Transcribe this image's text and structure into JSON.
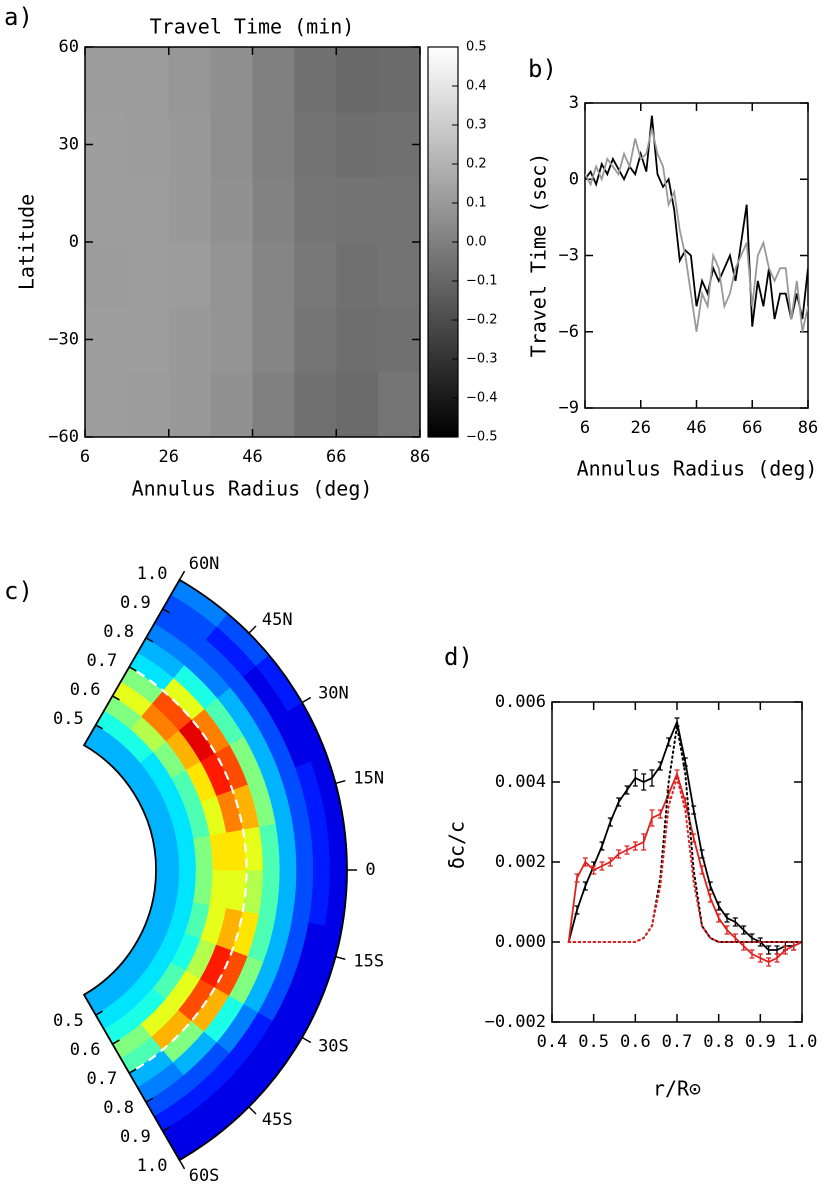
{
  "chart_data": [
    {
      "type": "heatmap",
      "label": "a)",
      "title": "Travel Time (min)",
      "xlabel": "Annulus Radius (deg)",
      "ylabel": "Latitude",
      "x_edges": [
        6,
        16,
        26,
        36,
        46,
        56,
        66,
        76,
        86
      ],
      "y_edges": [
        -60,
        -40,
        -20,
        0,
        20,
        40,
        60
      ],
      "values": [
        [
          0.12,
          0.11,
          0.1,
          0.07,
          0.0,
          -0.06,
          -0.08,
          -0.04
        ],
        [
          0.12,
          0.12,
          0.1,
          0.08,
          0.02,
          -0.04,
          -0.07,
          -0.06
        ],
        [
          0.11,
          0.12,
          0.11,
          0.08,
          0.02,
          -0.03,
          -0.06,
          -0.05
        ],
        [
          0.12,
          0.12,
          0.1,
          0.07,
          0.01,
          -0.04,
          -0.05,
          -0.05
        ],
        [
          0.12,
          0.11,
          0.1,
          0.06,
          0.0,
          -0.05,
          -0.07,
          -0.06
        ],
        [
          0.11,
          0.11,
          0.09,
          0.06,
          0.0,
          -0.06,
          -0.09,
          -0.08
        ]
      ],
      "xlim": [
        6,
        86
      ],
      "xticks": [
        6,
        26,
        46,
        66,
        86
      ],
      "ylim": [
        -60,
        60
      ],
      "yticks": [
        {
          "value": -60,
          "label": "−60"
        },
        {
          "value": -30,
          "label": "−30"
        },
        0,
        30,
        60
      ],
      "colormap": "gray",
      "colorbar": {
        "lim": [
          -0.5,
          0.5
        ],
        "ticks": [
          0.5,
          0.4,
          0.3,
          0.2,
          0.1,
          {
            "value": 0,
            "label": "0.0"
          },
          {
            "value": -0.1,
            "label": "−0.1"
          },
          {
            "value": -0.2,
            "label": "−0.2"
          },
          {
            "value": -0.3,
            "label": "−0.3"
          },
          {
            "value": -0.4,
            "label": "−0.4"
          },
          {
            "value": -0.5,
            "label": "−0.5"
          }
        ]
      }
    },
    {
      "type": "line",
      "label": "b)",
      "xlabel": "Annulus Radius (deg)",
      "ylabel": "Travel Time (sec)",
      "x": [
        6,
        8,
        10,
        12,
        14,
        16,
        18,
        20,
        22,
        24,
        26,
        28,
        30,
        32,
        34,
        36,
        38,
        40,
        42,
        44,
        46,
        48,
        50,
        52,
        54,
        56,
        58,
        60,
        62,
        64,
        66,
        68,
        70,
        72,
        74,
        76,
        78,
        80,
        82,
        84,
        86
      ],
      "series": [
        {
          "color": "#000000",
          "values": [
            0,
            0.3,
            -0.2,
            0.6,
            0.2,
            0.8,
            0.4,
            0,
            0.5,
            0.2,
            1,
            0.3,
            2.5,
            0.2,
            -0.3,
            0,
            -1.2,
            -3.2,
            -2.8,
            -3,
            -5,
            -4,
            -4.5,
            -3.5,
            -4,
            -3.5,
            -3,
            -4,
            -2.5,
            -1,
            -5.8,
            -4,
            -5,
            -3.5,
            -5.5,
            -4.5,
            -4.5,
            -5.5,
            -4.5,
            -5.5,
            -3.5
          ]
        },
        {
          "color": "#999999",
          "values": [
            0.2,
            -0.2,
            0.5,
            0,
            0.8,
            0.5,
            0.2,
            1,
            0.5,
            1.6,
            0.8,
            1,
            2,
            1,
            0.5,
            -1,
            -0.5,
            -2,
            -3,
            -4.5,
            -6,
            -4.5,
            -5,
            -3,
            -3.5,
            -5,
            -4.5,
            -3.5,
            -3,
            -2.5,
            -5,
            -3,
            -2.5,
            -3.5,
            -4,
            -3.5,
            -3.5,
            -5.5,
            -4,
            -6,
            -5
          ]
        }
      ],
      "xlim": [
        6,
        86
      ],
      "xticks": [
        6,
        26,
        46,
        66,
        86
      ],
      "ylim": [
        -9,
        3
      ],
      "yticks": [
        {
          "value": -9,
          "label": "−9"
        },
        {
          "value": -6,
          "label": "−6"
        },
        {
          "value": -3,
          "label": "−3"
        },
        0,
        3
      ]
    },
    {
      "type": "polar_heatmap",
      "label": "c)",
      "colormap": "jet",
      "lat_edges": [
        -60,
        -50,
        -40,
        -30,
        -20,
        -10,
        0,
        10,
        20,
        30,
        40,
        50,
        60
      ],
      "r_edges": [
        0.43,
        0.5,
        0.55,
        0.6,
        0.65,
        0.7,
        0.75,
        0.8,
        0.85,
        0.9,
        0.95,
        1.0
      ],
      "values": [
        [
          0.3,
          0.35,
          0.4,
          0.5,
          0.45,
          0.3,
          0.25,
          0.2,
          0.15,
          0.1,
          0.1
        ],
        [
          0.3,
          0.35,
          0.4,
          0.6,
          0.7,
          0.5,
          0.3,
          0.2,
          0.15,
          0.1,
          0.1
        ],
        [
          0.3,
          0.35,
          0.45,
          0.6,
          0.8,
          0.7,
          0.4,
          0.25,
          0.15,
          0.1,
          0.1
        ],
        [
          0.3,
          0.35,
          0.4,
          0.55,
          0.85,
          0.8,
          0.5,
          0.3,
          0.2,
          0.1,
          0.1
        ],
        [
          0.3,
          0.35,
          0.45,
          0.6,
          0.7,
          0.65,
          0.45,
          0.3,
          0.2,
          0.1,
          0.1
        ],
        [
          0.3,
          0.35,
          0.5,
          0.6,
          0.6,
          0.55,
          0.45,
          0.3,
          0.2,
          0.15,
          0.1
        ],
        [
          0.3,
          0.35,
          0.5,
          0.65,
          0.65,
          0.6,
          0.45,
          0.3,
          0.2,
          0.15,
          0.1
        ],
        [
          0.3,
          0.35,
          0.45,
          0.6,
          0.75,
          0.7,
          0.5,
          0.3,
          0.2,
          0.15,
          0.1
        ],
        [
          0.3,
          0.35,
          0.45,
          0.65,
          0.85,
          0.8,
          0.5,
          0.3,
          0.2,
          0.1,
          0.1
        ],
        [
          0.3,
          0.35,
          0.5,
          0.7,
          0.9,
          0.75,
          0.45,
          0.3,
          0.2,
          0.1,
          0.15
        ],
        [
          0.3,
          0.4,
          0.55,
          0.75,
          0.8,
          0.6,
          0.4,
          0.25,
          0.2,
          0.15,
          0.2
        ],
        [
          0.3,
          0.4,
          0.5,
          0.6,
          0.5,
          0.35,
          0.3,
          0.25,
          0.2,
          0.2,
          0.25
        ]
      ],
      "rticks": [
        0.5,
        0.6,
        0.7,
        0.8,
        0.9,
        {
          "value": 1.0,
          "label": "1.0"
        }
      ],
      "latticks": [
        {
          "value": 60,
          "label": "60N"
        },
        {
          "value": 45,
          "label": "45N"
        },
        {
          "value": 30,
          "label": "30N"
        },
        {
          "value": 15,
          "label": "15N"
        },
        0,
        {
          "value": -15,
          "label": "15S"
        },
        {
          "value": -30,
          "label": "30S"
        },
        {
          "value": -45,
          "label": "45S"
        },
        {
          "value": -60,
          "label": "60S"
        }
      ],
      "contour": {
        "r": 0.7,
        "color": "#ffffff"
      }
    },
    {
      "type": "line",
      "label": "d)",
      "xlabel": "r/R⊙",
      "ylabel": "δc/c",
      "x": [
        0.44,
        0.46,
        0.48,
        0.5,
        0.52,
        0.54,
        0.56,
        0.58,
        0.6,
        0.62,
        0.64,
        0.66,
        0.68,
        0.7,
        0.72,
        0.74,
        0.76,
        0.78,
        0.8,
        0.82,
        0.84,
        0.86,
        0.88,
        0.9,
        0.92,
        0.94,
        0.96,
        0.98,
        1.0
      ],
      "series": [
        {
          "color": "#000000",
          "values": [
            0,
            0.0008,
            0.0014,
            0.0019,
            0.0024,
            0.003,
            0.0035,
            0.0038,
            0.0041,
            0.004,
            0.0041,
            0.0044,
            0.005,
            0.0055,
            0.0045,
            0.0033,
            0.0022,
            0.0014,
            0.0009,
            0.0006,
            0.0005,
            0.0003,
            0.0001,
            0,
            -0.0002,
            -0.0002,
            -0.0001,
            -0.0001,
            0
          ],
          "errors": [
            0,
            0.0001,
            0.0001,
            0.0001,
            0.0001,
            0.0001,
            0.0001,
            0.0001,
            0.0002,
            0.0002,
            0.0002,
            0.0001,
            0.0001,
            0.0001,
            0.0001,
            0.0001,
            0.0001,
            0.0001,
            0.0001,
            0.0001,
            0.0001,
            0.0001,
            0.0001,
            0.0001,
            0.0001,
            0.0001,
            0.0001,
            0.0001,
            0
          ]
        },
        {
          "color": "#e02020",
          "values": [
            0,
            0.0016,
            0.002,
            0.0018,
            0.0019,
            0.002,
            0.0022,
            0.0023,
            0.0024,
            0.0025,
            0.0031,
            0.0032,
            0.0037,
            0.0042,
            0.0035,
            0.0026,
            0.0018,
            0.0011,
            0.0006,
            0.0003,
            0.0001,
            -0.0001,
            -0.0003,
            -0.0004,
            -0.0005,
            -0.0004,
            -0.0002,
            -0.0001,
            0
          ],
          "errors": [
            0,
            0.0001,
            0.0001,
            0.0001,
            0.0001,
            0.0001,
            0.0001,
            0.0001,
            0.0001,
            0.0002,
            0.0002,
            0.0001,
            0.0001,
            0.0001,
            0.0001,
            0.0001,
            0.0001,
            0.0001,
            0.0001,
            0.0001,
            0.0001,
            0.0001,
            0.0001,
            0.0001,
            0.0001,
            0.0001,
            0.0001,
            0.0001,
            0
          ]
        },
        {
          "color": "#000000",
          "dash": "dotted",
          "values": [
            0,
            0,
            0,
            0,
            0,
            0,
            0,
            0,
            0,
            0.0001,
            0.0004,
            0.0016,
            0.004,
            0.0054,
            0.0042,
            0.0018,
            0.0004,
            0.0001,
            0,
            0,
            0,
            0,
            0,
            0,
            0,
            0,
            0,
            0,
            0
          ]
        },
        {
          "color": "#e02020",
          "dash": "dotted",
          "values": [
            0,
            0,
            0,
            0,
            0,
            0,
            0,
            0,
            0,
            0.0001,
            0.0004,
            0.0014,
            0.0034,
            0.0041,
            0.0033,
            0.0015,
            0.0004,
            0.0001,
            0,
            0,
            0,
            0,
            0,
            0,
            0,
            0,
            0,
            0,
            0
          ]
        }
      ],
      "xlim": [
        0.4,
        1.0
      ],
      "xticks": [
        0.4,
        0.5,
        0.6,
        0.7,
        0.8,
        0.9,
        {
          "value": 1.0,
          "label": "1.0"
        }
      ],
      "ylim": [
        -0.002,
        0.006
      ],
      "yticks": [
        {
          "value": -0.002,
          "label": "−0.002"
        },
        {
          "value": 0,
          "label": "0.000"
        },
        0.002,
        0.004,
        0.006
      ]
    }
  ]
}
